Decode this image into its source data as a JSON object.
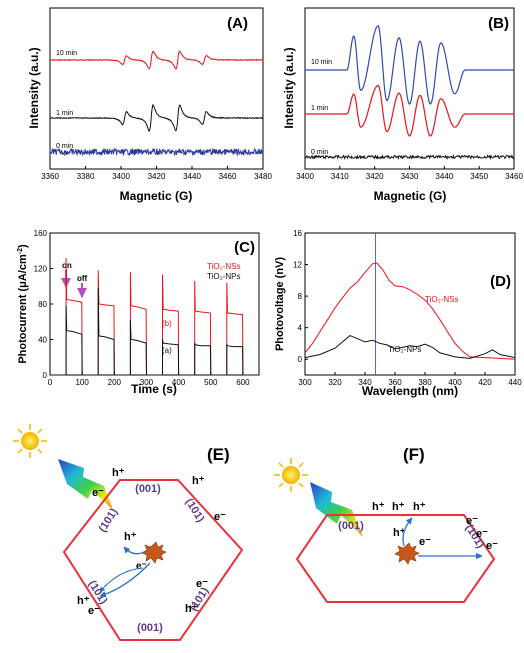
{
  "chart_data": [
    {
      "panel": "(A)",
      "type": "line",
      "xlabel": "Magnetic (G)",
      "ylabel": "Intensity (a.u.)",
      "xlim": [
        3360,
        3480
      ],
      "xticks": [
        "3360",
        "3380",
        "3400",
        "3420",
        "3440",
        "3460",
        "3480"
      ],
      "series": [
        {
          "name": "10 min",
          "color": "#e8141c",
          "baseline": 0,
          "lines_G": [
            3402,
            3417,
            3432,
            3447
          ],
          "amplitudes": [
            1.0,
            2.0,
            2.0,
            1.0
          ]
        },
        {
          "name": "1 min",
          "color": "#111111",
          "baseline": 0,
          "lines_G": [
            3402,
            3417,
            3432,
            3447
          ],
          "amplitudes": [
            1.0,
            2.0,
            2.0,
            1.0
          ]
        },
        {
          "name": "0 min",
          "color": "#2a3a9c",
          "baseline": 0,
          "lines_G": [],
          "amplitudes": []
        }
      ]
    },
    {
      "panel": "(B)",
      "type": "line",
      "xlabel": "Magnetic (G)",
      "ylabel": "Intensity (a.u.)",
      "xlim": [
        3400,
        3460
      ],
      "xticks": [
        "3400",
        "3410",
        "3420",
        "3430",
        "3440",
        "3450",
        "3460"
      ],
      "series": [
        {
          "name": "10 min",
          "color": "#2f4bb0",
          "extrema": [
            [
              3414,
              1.0
            ],
            [
              3416,
              -0.6
            ],
            [
              3421,
              1.3
            ],
            [
              3423.5,
              -0.9
            ],
            [
              3427,
              0.95
            ],
            [
              3430,
              -1.0
            ],
            [
              3433,
              0.85
            ],
            [
              3436,
              -1.0
            ],
            [
              3439,
              0.8
            ],
            [
              3443,
              -0.7
            ]
          ]
        },
        {
          "name": "1 min",
          "color": "#e8141c",
          "extrema": [
            [
              3414,
              0.9
            ],
            [
              3416,
              -0.6
            ],
            [
              3421,
              1.3
            ],
            [
              3423.5,
              -0.8
            ],
            [
              3427,
              0.95
            ],
            [
              3430,
              -1.0
            ],
            [
              3433,
              0.85
            ],
            [
              3436,
              -1.0
            ],
            [
              3439,
              0.7
            ],
            [
              3443,
              -0.6
            ]
          ]
        },
        {
          "name": "0 min",
          "color": "#111111",
          "extrema": []
        }
      ]
    },
    {
      "panel": "(C)",
      "type": "line",
      "xlabel": "Time (s)",
      "ylabel": "Photocurrent (μA/cm⁻²)",
      "xlim": [
        0,
        650
      ],
      "ylim": [
        0,
        160
      ],
      "xticks": [
        "0",
        "100",
        "200",
        "300",
        "400",
        "500",
        "600"
      ],
      "yticks": [
        "0",
        "40",
        "80",
        "120",
        "160"
      ],
      "legend": [
        "TiO₂-NSs",
        "TiO₂-NPs"
      ],
      "annotations": [
        "on",
        "off",
        "(b)",
        "(a)"
      ],
      "on_periods_s": [
        [
          50,
          100
        ],
        [
          150,
          200
        ],
        [
          250,
          300
        ],
        [
          350,
          400
        ],
        [
          450,
          500
        ],
        [
          550,
          600
        ]
      ],
      "series": [
        {
          "name": "(b)",
          "color": "#e8141c",
          "spikes": [
            132,
            118,
            116,
            113,
            106,
            104
          ],
          "plateau_start": [
            85,
            80,
            78,
            74,
            72,
            70
          ],
          "plateau_end": [
            82,
            78,
            74,
            72,
            70,
            68
          ]
        },
        {
          "name": "(a)",
          "color": "#111111",
          "spikes": [
            78,
            98,
            62,
            40,
            36,
            34
          ],
          "plateau_start": [
            50,
            44,
            40,
            36,
            34,
            33
          ],
          "plateau_end": [
            46,
            40,
            36,
            34,
            33,
            32
          ]
        }
      ]
    },
    {
      "panel": "(D)",
      "type": "line",
      "xlabel": "Wavelength (nm)",
      "ylabel": "Photovoltage (nV)",
      "xlim": [
        300,
        440
      ],
      "ylim": [
        -2,
        16
      ],
      "xticks": [
        "300",
        "320",
        "340",
        "360",
        "380",
        "400",
        "420",
        "440"
      ],
      "yticks": [
        "0",
        "4",
        "8",
        "12",
        "16"
      ],
      "vline_x": 347,
      "series": [
        {
          "name": "TiO₂-NSs",
          "color": "#e8141c",
          "x": [
            300,
            305,
            310,
            315,
            320,
            325,
            330,
            335,
            340,
            345,
            348,
            352,
            356,
            360,
            365,
            370,
            375,
            380,
            385,
            390,
            395,
            400,
            405,
            410,
            420,
            430,
            440
          ],
          "y": [
            0.8,
            2.0,
            3.5,
            5.0,
            6.5,
            7.8,
            9.0,
            9.8,
            11.0,
            12.1,
            12.2,
            11.3,
            10.0,
            9.3,
            9.2,
            8.8,
            8.2,
            7.5,
            6.4,
            5.0,
            3.5,
            2.0,
            1.0,
            0.3,
            0.2,
            0.1,
            0.0
          ]
        },
        {
          "name": "TiO₂-NPs",
          "color": "#111111",
          "x": [
            300,
            310,
            320,
            325,
            330,
            335,
            340,
            345,
            350,
            355,
            360,
            365,
            370,
            375,
            380,
            385,
            390,
            400,
            410,
            420,
            425,
            430,
            440
          ],
          "y": [
            0.2,
            0.6,
            1.4,
            2.2,
            3.0,
            2.6,
            2.2,
            2.4,
            2.0,
            1.8,
            1.3,
            1.5,
            1.7,
            1.6,
            1.9,
            1.5,
            0.8,
            0.3,
            0.1,
            0.7,
            1.2,
            0.6,
            0.2
          ]
        }
      ]
    }
  ],
  "panels": {
    "A": {
      "label": "(A)",
      "ylabel": "Intensity (a.u.)",
      "xlabel": "Magnetic (G)",
      "series_labels": [
        "10 min",
        "1 min",
        "0 min"
      ]
    },
    "B": {
      "label": "(B)",
      "ylabel": "Intensity (a.u.)",
      "xlabel": "Magnetic (G)",
      "series_labels": [
        "10 min",
        "1 min",
        "0 min"
      ]
    },
    "C": {
      "label": "(C)",
      "xlabel": "Time (s)",
      "legend_nss": "TiO₂-NSs",
      "legend_nps": "TiO₂-NPs",
      "on": "on",
      "off": "off",
      "b": "(b)",
      "a": "(a)"
    },
    "D": {
      "label": "(D)",
      "xlabel": "Wavelength (nm)",
      "ylabel": "Photovoltage (nV)",
      "nss": "TiO₂-NSs",
      "nps": "TiO₂-NPs"
    },
    "E": {
      "label": "(E)",
      "facet_top": "(001)",
      "facet_bottom": "(001)",
      "facet_101": "(101)",
      "h": "h⁺",
      "e": "e⁻"
    },
    "F": {
      "label": "(F)",
      "facet_001": "(001)",
      "facet_101": "(101)",
      "h": "h⁺",
      "e": "e⁻"
    }
  }
}
